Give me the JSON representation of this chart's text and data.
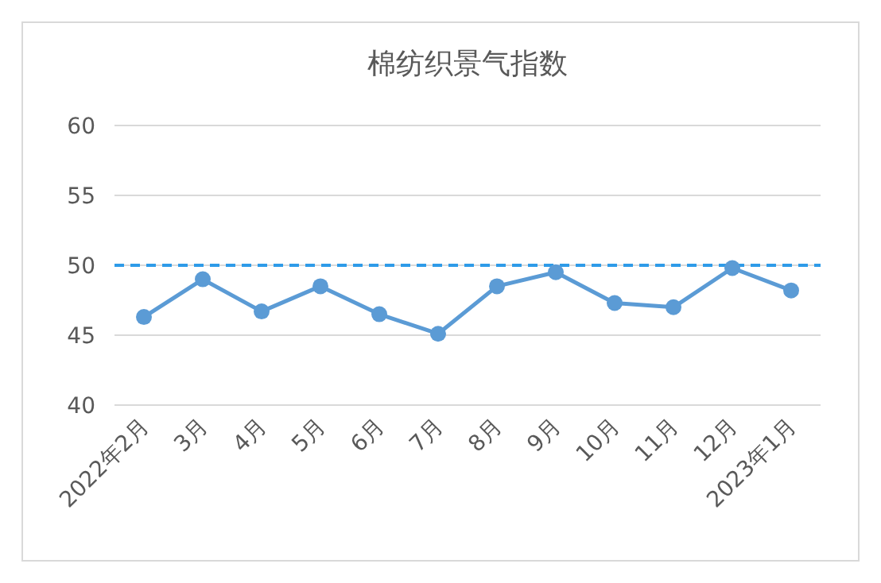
{
  "chart_data": {
    "type": "line",
    "title": "棉纺织景气指数",
    "categories": [
      "2022年2月",
      "3月",
      "4月",
      "5月",
      "6月",
      "7月",
      "8月",
      "9月",
      "10月",
      "11月",
      "12月",
      "2023年1月"
    ],
    "series": [
      {
        "color": "#5b9bd5",
        "values": [
          46.3,
          49.0,
          46.7,
          48.5,
          46.5,
          45.1,
          48.5,
          49.5,
          47.3,
          47.0,
          49.8,
          48.2
        ]
      }
    ],
    "ylim": [
      40,
      60
    ],
    "yticks": [
      40,
      45,
      50,
      55,
      60
    ],
    "grid": "y",
    "marker": "circle",
    "line_style": "solid",
    "ref_lines": [
      {
        "axis": "y",
        "value": 50,
        "color": "#2e9be8",
        "line_style": "dashed"
      }
    ]
  }
}
